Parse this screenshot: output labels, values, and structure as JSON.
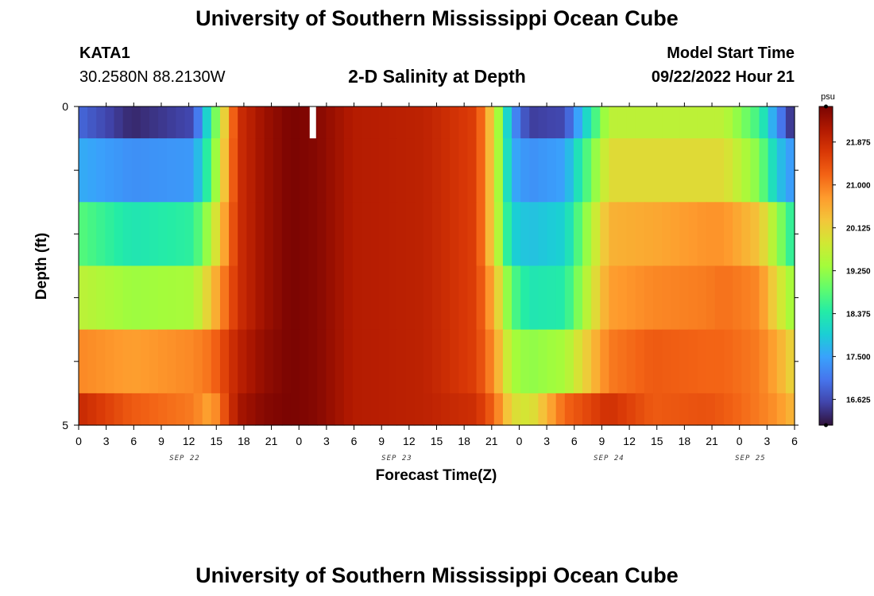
{
  "header": {
    "title": "University of Southern Mississippi Ocean Cube",
    "station": "KATA1",
    "coords": "30.2580N  88.2130W",
    "subtitle": "2-D Salinity at Depth",
    "start_label": "Model Start Time",
    "start_value": "09/22/2022 Hour 21"
  },
  "footer": {
    "title": "University of Southern Mississippi Ocean Cube"
  },
  "colors": {
    "colormap": [
      "#30123b",
      "#4145ab",
      "#4675ed",
      "#39a2fc",
      "#1bcfd4",
      "#24eca6",
      "#61fc6c",
      "#a4fc3b",
      "#d1e834",
      "#f3c63a",
      "#fe9b2d",
      "#f36315",
      "#d93806",
      "#b11901",
      "#7a0402"
    ]
  },
  "chart_data": {
    "type": "heatmap",
    "title": "2-D Salinity at Depth",
    "xlabel": "Forecast Time(Z)",
    "ylabel": "Depth (ft)",
    "unit": "psu",
    "xlim": [
      0,
      81
    ],
    "ylim": [
      0,
      5
    ],
    "x_tick_labels": [
      "0",
      "3",
      "6",
      "9",
      "12",
      "15",
      "18",
      "21",
      "0",
      "3",
      "6",
      "9",
      "12",
      "15",
      "18",
      "21",
      "0",
      "3",
      "6",
      "9",
      "12",
      "15",
      "18",
      "21",
      "0",
      "3",
      "6"
    ],
    "y_tick_labels": [
      "0",
      "5"
    ],
    "day_labels": [
      {
        "label": "SEP 22",
        "x": 12
      },
      {
        "label": "SEP 23",
        "x": 36
      },
      {
        "label": "SEP 24",
        "x": 60
      },
      {
        "label": "SEP 25",
        "x": 76
      }
    ],
    "colorbar": {
      "min": 16.1,
      "max": 22.6,
      "ticks": [
        "16.625",
        "17.500",
        "18.375",
        "19.250",
        "20.125",
        "21.000",
        "21.875"
      ]
    },
    "missing_cell": {
      "x": 26.5,
      "depth_row": 0
    },
    "depth_rows": [
      0,
      1,
      2,
      3,
      4,
      5
    ],
    "key_hours": [
      0,
      6,
      13,
      15,
      18,
      21,
      24,
      27,
      31,
      39,
      45,
      47,
      49,
      51,
      55,
      60,
      65,
      71,
      73,
      77,
      79,
      81
    ],
    "salinity_at_key_hours": [
      [
        16.9,
        16.3,
        16.6,
        18.5,
        21.8,
        22.3,
        22.6,
        22.5,
        22.1,
        22.0,
        21.6,
        20.0,
        17.4,
        16.5,
        16.6,
        19.6,
        19.6,
        19.6,
        19.6,
        18.6,
        17.3,
        16.2
      ],
      [
        17.6,
        17.3,
        17.4,
        18.8,
        21.8,
        22.3,
        22.6,
        22.5,
        22.1,
        22.0,
        21.6,
        20.0,
        17.6,
        17.3,
        17.5,
        20.0,
        20.0,
        20.0,
        20.0,
        19.1,
        17.9,
        17.3
      ],
      [
        18.8,
        18.3,
        18.5,
        19.5,
        21.8,
        22.3,
        22.6,
        22.5,
        22.1,
        22.0,
        21.6,
        20.0,
        18.0,
        17.8,
        18.0,
        20.5,
        20.6,
        20.8,
        20.8,
        20.3,
        19.3,
        18.3
      ],
      [
        19.6,
        19.3,
        19.4,
        20.3,
        21.8,
        22.3,
        22.6,
        22.5,
        22.1,
        22.0,
        21.6,
        20.5,
        18.8,
        18.3,
        18.4,
        20.7,
        20.9,
        21.0,
        21.1,
        20.9,
        20.0,
        19.2
      ],
      [
        20.9,
        20.7,
        20.9,
        21.1,
        22.0,
        22.4,
        22.6,
        22.5,
        22.1,
        22.0,
        21.6,
        20.8,
        19.4,
        19.2,
        19.4,
        21.0,
        21.3,
        21.2,
        21.2,
        21.0,
        20.6,
        20.0
      ],
      [
        21.9,
        21.3,
        21.0,
        20.6,
        22.2,
        22.5,
        22.6,
        22.5,
        22.1,
        22.0,
        21.8,
        21.2,
        20.0,
        19.8,
        21.2,
        21.8,
        21.3,
        21.4,
        21.3,
        21.0,
        20.8,
        20.4
      ]
    ]
  }
}
